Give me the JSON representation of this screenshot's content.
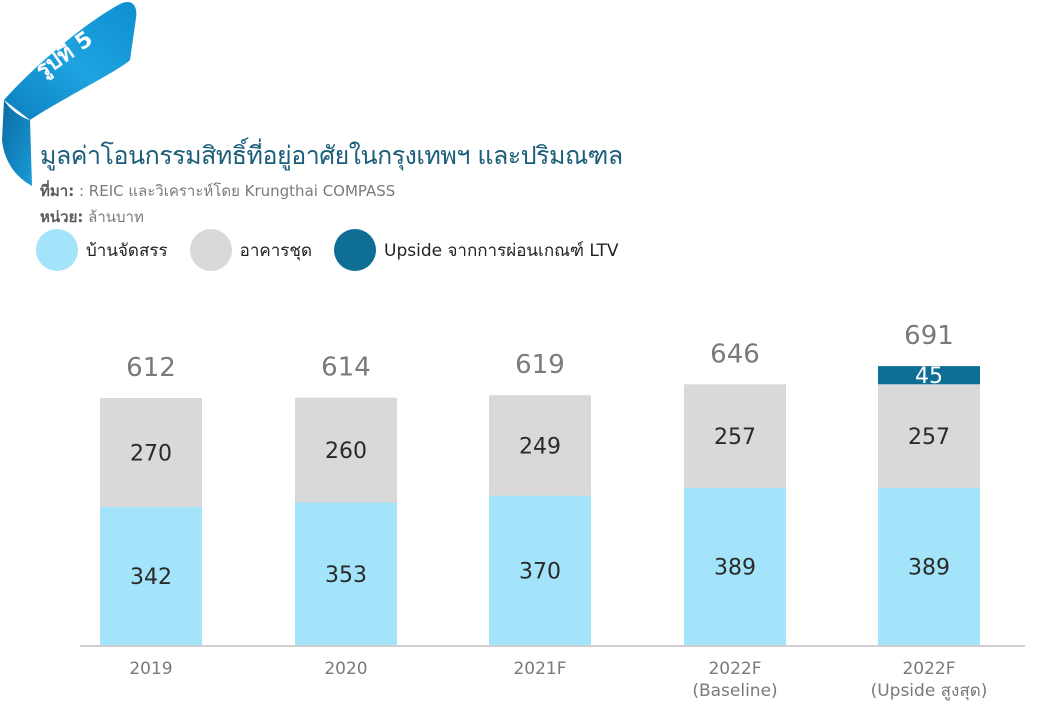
{
  "figure": {
    "badge": "รูปที่ 5",
    "title": "มูลค่าโอนกรรมสิทธิ์ที่อยู่อาศัยในกรุงเทพฯ และปริมณฑล",
    "source_label": "ที่มา:",
    "source_text": " : REIC และวิเคราะห์โดย Krungthai COMPASS",
    "unit_label": "หน่วย:",
    "unit_text": " ล้านบาท"
  },
  "colors": {
    "ribbon": "#1a9bd7",
    "ribbon_dark": "#0b6fa6",
    "house": "#a3e4fb",
    "condo": "#d9d9d9",
    "upside": "#0f6e94",
    "axis": "#cfcfcf",
    "total_text": "#7a7a7a",
    "tick_text": "#7a7a7a"
  },
  "chart_data": {
    "type": "bar",
    "stacked": true,
    "title": "มูลค่าโอนกรรมสิทธิ์ที่อยู่อาศัยในกรุงเทพฯ และปริมณฑล",
    "xlabel": "",
    "ylabel": "ล้านบาท",
    "ylim": [
      0,
      700
    ],
    "grid": false,
    "legend_position": "top-left",
    "categories": [
      [
        "2019"
      ],
      [
        "2020"
      ],
      [
        "2021F"
      ],
      [
        "2022F",
        "(Baseline)"
      ],
      [
        "2022F",
        "(Upside สูงสุด)"
      ]
    ],
    "series": [
      {
        "name": "บ้านจัดสรร",
        "color_key": "house",
        "values": [
          342,
          353,
          370,
          389,
          389
        ]
      },
      {
        "name": "อาคารชุด",
        "color_key": "condo",
        "values": [
          270,
          260,
          249,
          257,
          257
        ]
      },
      {
        "name": "Upside จากการผ่อนเกณฑ์ LTV",
        "color_key": "upside",
        "values": [
          0,
          0,
          0,
          0,
          45
        ]
      }
    ],
    "totals": [
      612,
      614,
      619,
      646,
      691
    ]
  }
}
